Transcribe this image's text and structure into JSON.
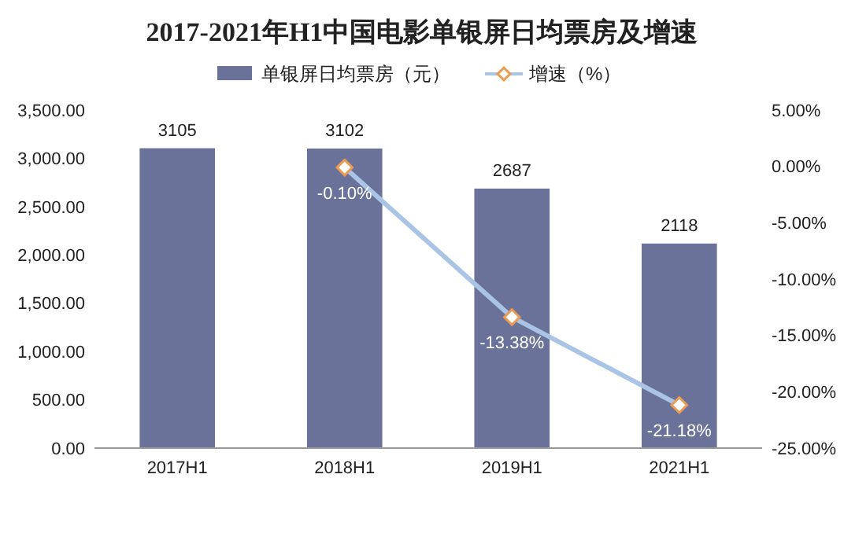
{
  "chart_data": {
    "type": "bar",
    "title": "2017-2021年H1中国电影单银屏日均票房及增速",
    "categories": [
      "2017H1",
      "2018H1",
      "2019H1",
      "2021H1"
    ],
    "series": [
      {
        "name": "单银屏日均票房（元）",
        "color": "#6a7299",
        "values": [
          3105,
          3102,
          2687,
          2118
        ],
        "value_labels": [
          "3105",
          "3102",
          "2687",
          "2118"
        ]
      },
      {
        "name": "增速（%）",
        "type": "line",
        "axis": "y2",
        "color": "#a9c4e4",
        "values": [
          null,
          -0.1,
          -13.38,
          -21.18
        ],
        "value_labels": [
          null,
          "-0.10%",
          "-13.38%",
          "-21.18%"
        ]
      }
    ],
    "ylim": [
      0,
      3500
    ],
    "yticks": [
      {
        "value": 0,
        "label": "0.00"
      },
      {
        "value": 500,
        "label": "500.00"
      },
      {
        "value": 1000,
        "label": "1,000.00"
      },
      {
        "value": 1500,
        "label": "1,500.00"
      },
      {
        "value": 2000,
        "label": "2,000.00"
      },
      {
        "value": 2500,
        "label": "2,500.00"
      },
      {
        "value": 3000,
        "label": "3,000.00"
      },
      {
        "value": 3500,
        "label": "3,500.00"
      }
    ],
    "y2lim": [
      -25,
      5
    ],
    "y2ticks": [
      {
        "value": 5,
        "label": "5.00%"
      },
      {
        "value": 0,
        "label": "0.00%"
      },
      {
        "value": -5,
        "label": "-5.00%"
      },
      {
        "value": -10,
        "label": "-10.00%"
      },
      {
        "value": -15,
        "label": "-15.00%"
      },
      {
        "value": -20,
        "label": "-20.00%"
      },
      {
        "value": -25,
        "label": "-25.00%"
      }
    ],
    "marker": "diamond",
    "legend": "top",
    "grid": false
  }
}
